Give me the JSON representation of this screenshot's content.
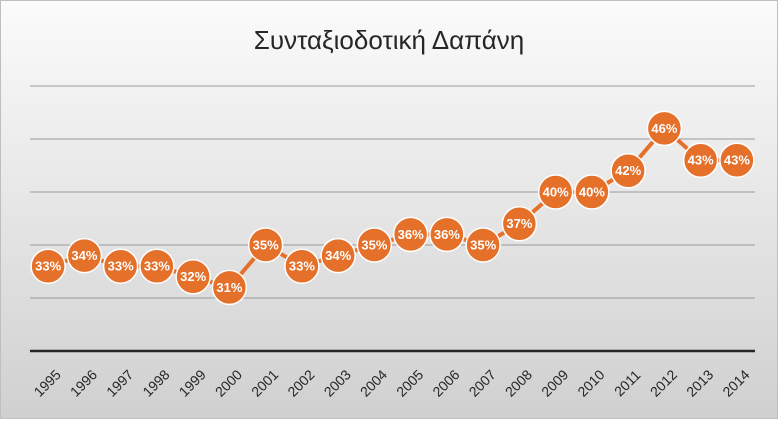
{
  "chart_data": {
    "type": "line",
    "title": "Συνταξιοδοτική Δαπάνη",
    "categories": [
      "1995",
      "1996",
      "1997",
      "1998",
      "1999",
      "2000",
      "2001",
      "2002",
      "2003",
      "2004",
      "2005",
      "2006",
      "2007",
      "2008",
      "2009",
      "2010",
      "2011",
      "2012",
      "2013",
      "2014"
    ],
    "values": [
      33,
      34,
      33,
      33,
      32,
      31,
      35,
      33,
      34,
      35,
      36,
      36,
      35,
      37,
      40,
      40,
      42,
      46,
      43,
      43
    ],
    "value_labels": [
      "33%",
      "34%",
      "33%",
      "33%",
      "32%",
      "31%",
      "35%",
      "33%",
      "34%",
      "35%",
      "36%",
      "36%",
      "35%",
      "37%",
      "40%",
      "40%",
      "42%",
      "46%",
      "43%",
      "43%"
    ],
    "color": "#e4702a",
    "ylim": [
      25,
      50
    ],
    "yticks": [
      25,
      30,
      35,
      40,
      45,
      50
    ],
    "grid": true
  }
}
